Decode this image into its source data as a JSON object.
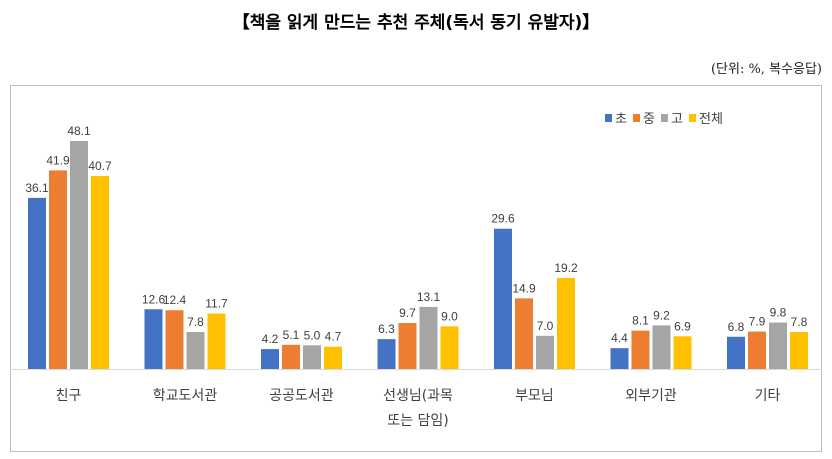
{
  "chart_data": {
    "type": "bar",
    "title": "【책을 읽게 만드는 추천 주체(독서 동기 유발자)】",
    "unit_note": "(단위: %, 복수응답)",
    "categories": [
      "친구",
      "학교도서관",
      "공공도서관",
      "선생님(과목 또는 담임)",
      "부모님",
      "외부기관",
      "기타"
    ],
    "category_lines": [
      [
        "친구"
      ],
      [
        "학교도서관"
      ],
      [
        "공공도서관"
      ],
      [
        "선생님(과목",
        "또는 담임)"
      ],
      [
        "부모님"
      ],
      [
        "외부기관"
      ],
      [
        "기타"
      ]
    ],
    "series": [
      {
        "name": "초",
        "color": "#4472c4",
        "values": [
          36.1,
          12.6,
          4.2,
          6.3,
          29.6,
          4.4,
          6.8
        ]
      },
      {
        "name": "중",
        "color": "#ed7d31",
        "values": [
          41.9,
          12.4,
          5.1,
          9.7,
          14.9,
          8.1,
          7.9
        ]
      },
      {
        "name": "고",
        "color": "#a5a5a5",
        "values": [
          48.1,
          7.8,
          5.0,
          13.1,
          7.0,
          9.2,
          9.8
        ]
      },
      {
        "name": "전체",
        "color": "#ffc000",
        "values": [
          40.7,
          11.7,
          4.7,
          9.0,
          19.2,
          6.9,
          7.8
        ]
      }
    ],
    "ylim": [
      0,
      50
    ],
    "grid": false,
    "legend": "top-right",
    "data_labels": true
  }
}
